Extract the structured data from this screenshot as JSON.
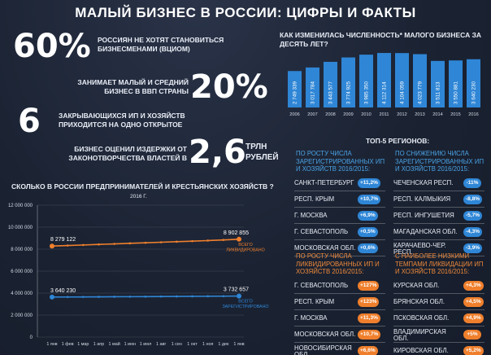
{
  "page_title": "МАЛЫЙ БИЗНЕС В РОССИИ: ЦИФРЫ И ФАКТЫ",
  "facts": [
    {
      "value": "60%",
      "text": "РОССИЯН НЕ ХОТЯТ СТАНОВИТЬСЯ БИЗНЕСМЕНАМИ (ВЦИОМ)"
    },
    {
      "value": "20%",
      "text": "ЗАНИМАЕТ МАЛЫЙ И СРЕДНИЙ БИЗНЕС В ВВП СТРАНЫ"
    },
    {
      "value": "6",
      "text": "ЗАКРЫВАЮЩИХСЯ ИП И ХОЗЯЙСТВ ПРИХОДИТСЯ НА ОДНО ОТКРЫТОЕ"
    },
    {
      "value": "2,6",
      "unit": "ТРЛН РУБЛЕЙ",
      "text": "БИЗНЕС ОЦЕНИЛ ИЗДЕРЖКИ ОТ ЗАКОНОТВОРЧЕСТВА ВЛАСТЕЙ В"
    }
  ],
  "regions": {
    "title": "ТОП-5 РЕГИОНОВ:",
    "groups": [
      {
        "heading": "ПО РОСТУ ЧИСЛА ЗАРЕГИСТРИРОВАННЫХ ИП И ХОЗЯЙСТВ 2016/2015:",
        "color": "blue",
        "rows": [
          {
            "name": "САНКТ-ПЕТЕРБУРГ",
            "value": "+11,2%"
          },
          {
            "name": "РЕСП. КРЫМ",
            "value": "+10,7%"
          },
          {
            "name": "Г. МОСКВА",
            "value": "+6,9%"
          },
          {
            "name": "Г. СЕВАСТОПОЛЬ",
            "value": "+0,5%"
          },
          {
            "name": "МОСКОВСКАЯ ОБЛ.",
            "value": "+0,6%"
          }
        ]
      },
      {
        "heading": "ПО СНИЖЕНИЮ ЧИСЛА ЗАРЕГИСТРИРОВАННЫХ ИП И ХОЗЯЙСТВ 2016/2015:",
        "color": "blue",
        "rows": [
          {
            "name": "ЧЕЧЕНСКАЯ РЕСП.",
            "value": "-11%"
          },
          {
            "name": "РЕСП. КАЛМЫКИЯ",
            "value": "-8,8%"
          },
          {
            "name": "РЕСП. ИНГУШЕТИЯ",
            "value": "-5,7%"
          },
          {
            "name": "МАГАДАНСКАЯ ОБЛ.",
            "value": "-4,3%"
          },
          {
            "name": "КАРАЧАЕВО-ЧЕР. РЕСП.",
            "value": "-3,9%"
          }
        ]
      },
      {
        "heading": "ПО РОСТУ ЧИСЛА ЛИКВИДИРОВАННЫХ ИП И ХОЗЯЙСТВ 2016/2015:",
        "color": "orange",
        "rows": [
          {
            "name": "Г. СЕВАСТОПОЛЬ",
            "value": "+127%"
          },
          {
            "name": "РЕСП. КРЫМ",
            "value": "+123%"
          },
          {
            "name": "Г. МОСКВА",
            "value": "+11,3%"
          },
          {
            "name": "МОСКОВСКАЯ ОБЛ.",
            "value": "+10,7%"
          },
          {
            "name": "НОВОСИБИРСКАЯ ОБЛ.",
            "value": "+6,6%"
          }
        ]
      },
      {
        "heading": "С НАИБОЛЕЕ НИЗКИМИ ТЕМПАМИ ЛИКВИДАЦИИ ИП И ХОЗЯЙСТВ 2016/2015:",
        "color": "orange",
        "rows": [
          {
            "name": "КУРСКАЯ ОБЛ.",
            "value": "+4,3%"
          },
          {
            "name": "БРЯНСКАЯ ОБЛ.",
            "value": "+4,5%"
          },
          {
            "name": "ПСКОВСКАЯ ОБЛ.",
            "value": "+4,9%"
          },
          {
            "name": "ВЛАДИМИРСКАЯ ОБЛ.",
            "value": "+5%"
          },
          {
            "name": "КИРОВСКАЯ ОБЛ.",
            "value": "+5,2%"
          }
        ]
      }
    ]
  },
  "colors": {
    "blue": "#2f86d6",
    "orange": "#ef7f2c",
    "bar": "#2f86d6"
  },
  "chart_data": [
    {
      "type": "bar",
      "title": "КАК ИЗМЕНИЛАСЬ ЧИСЛЕННОСТЬ* МАЛОГО БИЗНЕСА ЗА ДЕСЯТЬ ЛЕТ?",
      "categories": [
        "2006",
        "2007",
        "2008",
        "2009",
        "2010",
        "2011",
        "2012",
        "2013",
        "2014",
        "2015",
        "2016"
      ],
      "values": [
        2749339,
        3017784,
        3443577,
        3774925,
        3985350,
        4112314,
        4104059,
        4023779,
        3511813,
        3550881,
        3640230
      ],
      "value_labels": [
        "2 749 339",
        "3 017 784",
        "3 443 577",
        "3 774 925",
        "3 985 350",
        "4 112 314",
        "4 104 059",
        "4 023 779",
        "3 511 813",
        "3 550 881",
        "3 640 230"
      ],
      "ylim": [
        0,
        4300000
      ],
      "grid": false
    },
    {
      "type": "line",
      "title": "СКОЛЬКО В РОССИИ ПРЕДПРИНИМАТЕЛЕЙ И КРЕСТЬЯНСКИХ ХОЗЯЙСТВ ?",
      "subtitle": "2016 Г.",
      "categories": [
        "1 янв",
        "1 фев",
        "1 мар",
        "1 апр",
        "1 май",
        "1 июн",
        "1 июл",
        "1 авг",
        "1 сен",
        "1 окт",
        "1 ноя",
        "1 дек",
        "1 янв"
      ],
      "y_ticks": [
        "0",
        "2 000 000",
        "4 000 000",
        "6 000 000",
        "8 000 000",
        "10 000 000",
        "12 000 000"
      ],
      "ylim": [
        0,
        12000000
      ],
      "grid": true,
      "series": [
        {
          "name": "ВСЕГО ЛИКВИДИРОВАНО",
          "color": "#ef7f2c",
          "values": [
            8279122,
            8330000,
            8380000,
            8430000,
            8480000,
            8530000,
            8580000,
            8630000,
            8680000,
            8730000,
            8780000,
            8840000,
            8902855
          ],
          "start_label": "8 279 122",
          "end_label": "8 902 855"
        },
        {
          "name": "ВСЕГО ЗАРЕГИСТРИРОВАНО",
          "color": "#2f86d6",
          "values": [
            3640230,
            3648000,
            3655000,
            3662000,
            3668000,
            3675000,
            3682000,
            3690000,
            3698000,
            3706000,
            3714000,
            3723000,
            3732657
          ],
          "start_label": "3 640 230",
          "end_label": "3 732 657"
        }
      ]
    }
  ]
}
